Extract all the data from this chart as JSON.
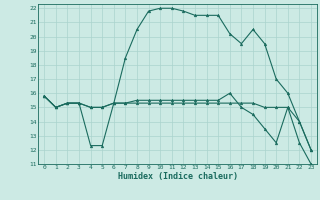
{
  "xlabel": "Humidex (Indice chaleur)",
  "xlim": [
    -0.5,
    23.5
  ],
  "ylim": [
    11,
    22.3
  ],
  "xticks": [
    0,
    1,
    2,
    3,
    4,
    5,
    6,
    7,
    8,
    9,
    10,
    11,
    12,
    13,
    14,
    15,
    16,
    17,
    18,
    19,
    20,
    21,
    22,
    23
  ],
  "yticks": [
    11,
    12,
    13,
    14,
    15,
    16,
    17,
    18,
    19,
    20,
    21,
    22
  ],
  "background_color": "#cceae4",
  "line_color": "#1a6b5e",
  "grid_color": "#aad4ce",
  "series": [
    {
      "x": [
        0,
        1,
        2,
        3,
        4,
        5,
        6,
        7,
        8,
        9,
        10,
        11,
        12,
        13,
        14,
        15,
        16,
        17,
        18,
        19,
        20,
        21,
        22,
        23
      ],
      "y": [
        15.8,
        15.0,
        15.3,
        15.3,
        15.0,
        15.0,
        15.3,
        18.5,
        20.5,
        21.8,
        22.0,
        22.0,
        21.8,
        21.5,
        21.5,
        21.5,
        20.2,
        19.5,
        20.5,
        19.5,
        17.0,
        16.0,
        14.0,
        12.0
      ]
    },
    {
      "x": [
        0,
        1,
        2,
        3,
        4,
        5,
        6,
        7,
        8,
        9,
        10,
        11,
        12,
        13,
        14,
        15,
        16,
        17,
        18,
        19,
        20,
        21,
        22,
        23
      ],
      "y": [
        15.8,
        15.0,
        15.3,
        15.3,
        12.3,
        12.3,
        15.3,
        15.3,
        15.5,
        15.5,
        15.5,
        15.5,
        15.5,
        15.5,
        15.5,
        15.5,
        16.0,
        15.0,
        14.5,
        13.5,
        12.5,
        15.0,
        12.5,
        11.0
      ]
    },
    {
      "x": [
        0,
        1,
        2,
        3,
        4,
        5,
        6,
        7,
        8,
        9,
        10,
        11,
        12,
        13,
        14,
        15,
        16,
        17,
        18,
        19,
        20,
        21,
        22,
        23
      ],
      "y": [
        15.8,
        15.0,
        15.3,
        15.3,
        15.0,
        15.0,
        15.3,
        15.3,
        15.3,
        15.3,
        15.3,
        15.3,
        15.3,
        15.3,
        15.3,
        15.3,
        15.3,
        15.3,
        15.3,
        15.0,
        15.0,
        15.0,
        14.0,
        12.0
      ]
    }
  ]
}
